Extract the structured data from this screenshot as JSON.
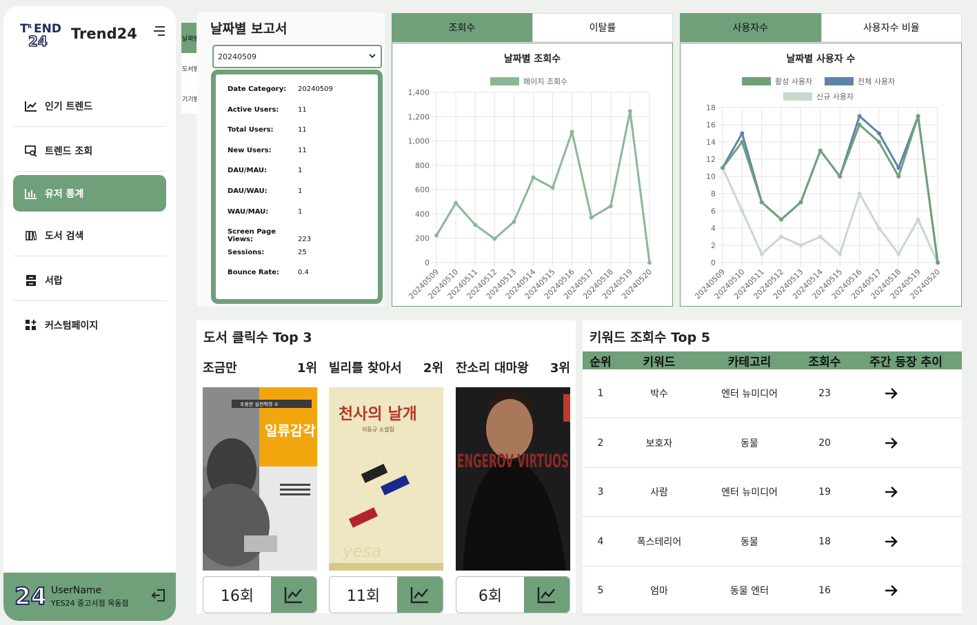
{
  "sidebar": {
    "logo_text": "TREND 24",
    "brand": "Trend24",
    "items": [
      {
        "label": "인기 트렌드",
        "icon": "trend-chart-icon"
      },
      {
        "label": "트렌드 조회",
        "icon": "search-screen-icon"
      },
      {
        "label": "유저 통계",
        "icon": "bar-chart-icon"
      },
      {
        "label": "도서 검색",
        "icon": "books-icon"
      },
      {
        "label": "서랍",
        "icon": "drawer-icon"
      },
      {
        "label": "커스텀페이지",
        "icon": "grid-plus-icon"
      }
    ],
    "active_index": 2,
    "user": {
      "name": "UserName",
      "store": "YES24 중고서점 목동점"
    }
  },
  "mini_tabs": [
    "날짜별",
    "도서별",
    "기기별"
  ],
  "report": {
    "title": "날짜별 보고서",
    "selected_date": "20240509",
    "stats": [
      {
        "key": "Date Category:",
        "value": "20240509"
      },
      {
        "key": "Active Users:",
        "value": "11"
      },
      {
        "key": "Total Users:",
        "value": "11"
      },
      {
        "key": "New Users:",
        "value": "11"
      },
      {
        "key": "DAU/MAU:",
        "value": "1"
      },
      {
        "key": "DAU/WAU:",
        "value": "1"
      },
      {
        "key": "WAU/MAU:",
        "value": "1"
      },
      {
        "key": "Screen Page Views:",
        "value": "223"
      },
      {
        "key": "Sessions:",
        "value": "25"
      },
      {
        "key": "Bounce Rate:",
        "value": "0.4"
      }
    ]
  },
  "views_card": {
    "tabs": [
      "조회수",
      "이탈률"
    ],
    "active_tab": 0
  },
  "users_card": {
    "tabs": [
      "사용자수",
      "사용자수 비율"
    ],
    "active_tab": 0
  },
  "chart_data": [
    {
      "type": "line",
      "title": "날짜별 조회수",
      "x": [
        "20240509",
        "20240510",
        "20240511",
        "20240512",
        "20240513",
        "20240514",
        "20240515",
        "20240516",
        "20240517",
        "20240518",
        "20240519",
        "20240520"
      ],
      "series": [
        {
          "name": "페이지 조회수",
          "values": [
            223,
            490,
            310,
            195,
            335,
            700,
            615,
            1075,
            370,
            465,
            1245,
            0
          ],
          "color": "#8ab896"
        }
      ],
      "ylim": [
        0,
        1400
      ],
      "yticks": [
        0,
        200,
        400,
        600,
        800,
        1000,
        1200,
        "1,400"
      ],
      "legend": "top",
      "grid": true
    },
    {
      "type": "line",
      "title": "날짜별 사용자 수",
      "x": [
        "20240509",
        "20240510",
        "20240511",
        "20240512",
        "20240513",
        "20240514",
        "20240515",
        "20240516",
        "20240517",
        "20240518",
        "20240519",
        "20240520"
      ],
      "series": [
        {
          "name": "활성 사용자",
          "values": [
            11,
            14,
            7,
            5,
            7,
            13,
            10,
            16,
            14,
            10,
            17,
            0
          ],
          "color": "#6fa07a"
        },
        {
          "name": "전체 사용자",
          "values": [
            11,
            15,
            7,
            5,
            7,
            13,
            10,
            17,
            15,
            11,
            17,
            0
          ],
          "color": "#5f83a8"
        },
        {
          "name": "신규 사용자",
          "values": [
            11,
            6,
            1,
            3,
            2,
            3,
            1,
            8,
            4,
            1,
            5,
            0
          ],
          "color": "#c8d8cb"
        }
      ],
      "ylim": [
        0,
        18
      ],
      "yticks": [
        0,
        2,
        4,
        6,
        8,
        10,
        12,
        14,
        16,
        18
      ],
      "legend": "top",
      "grid": true
    }
  ],
  "books": {
    "title": "도서 클릭수 Top 3",
    "items": [
      {
        "title": "조금만",
        "rank": "1위",
        "count": "16회",
        "cover_text": "일류감각",
        "cover_sub": "조용한 실천혁명 ①"
      },
      {
        "title": "빌리를 찾아서",
        "rank": "2위",
        "count": "11회",
        "cover_text": "천사의 날개",
        "cover_sub": "이동규 소설집"
      },
      {
        "title": "잔소리 대마왕",
        "rank": "3위",
        "count": "6회",
        "cover_text": "ENGEROV VIRTUOS",
        "cover_sub": ""
      }
    ]
  },
  "keywords": {
    "title": "키워드 조회수 Top 5",
    "headers": [
      "순위",
      "키워드",
      "카테고리",
      "조회수",
      "주간 등장 추이"
    ],
    "rows": [
      {
        "rank": "1",
        "keyword": "박수",
        "category": "엔터 뉴미디어",
        "views": "23"
      },
      {
        "rank": "2",
        "keyword": "보호자",
        "category": "동물",
        "views": "20"
      },
      {
        "rank": "3",
        "keyword": "사람",
        "category": "엔터 뉴미디어",
        "views": "19"
      },
      {
        "rank": "4",
        "keyword": "폭스테리어",
        "category": "동물",
        "views": "18"
      },
      {
        "rank": "5",
        "keyword": "엄마",
        "category": "동물 엔터",
        "views": "16"
      }
    ]
  }
}
